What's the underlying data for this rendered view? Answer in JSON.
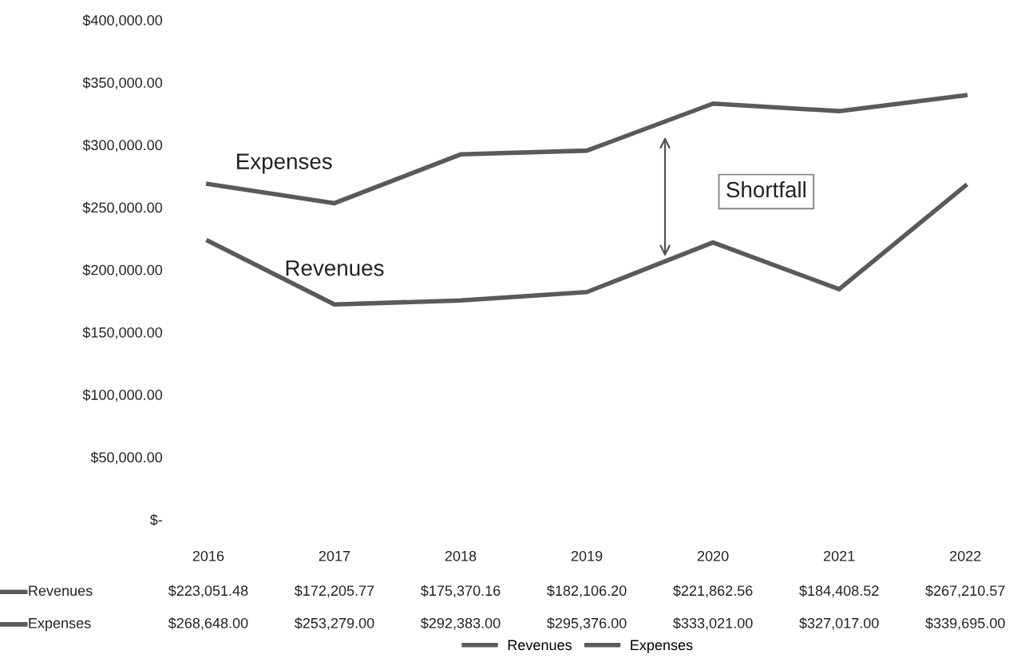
{
  "chart_data": {
    "type": "line",
    "categories": [
      "2016",
      "2017",
      "2018",
      "2019",
      "2020",
      "2021",
      "2022"
    ],
    "series": [
      {
        "name": "Revenues",
        "color": "#5a5a5a",
        "values": [
          223051.48,
          172205.77,
          175370.16,
          182106.2,
          221862.56,
          184408.52,
          267210.57
        ],
        "value_labels": [
          "$223,051.48",
          "$172,205.77",
          "$175,370.16",
          "$182,106.20",
          "$221,862.56",
          "$184,408.52",
          "$267,210.57"
        ]
      },
      {
        "name": "Expenses",
        "color": "#5a5a5a",
        "values": [
          268648.0,
          253279.0,
          292383.0,
          295376.0,
          333021.0,
          327017.0,
          339695.0
        ],
        "value_labels": [
          "$268,648.00",
          "$253,279.00",
          "$292,383.00",
          "$295,376.00",
          "$333,021.00",
          "$327,017.00",
          "$339,695.00"
        ]
      }
    ],
    "ylim": [
      0,
      400000
    ],
    "yticks": [
      {
        "value": 0,
        "label": "$-"
      },
      {
        "value": 50000,
        "label": "$50,000.00"
      },
      {
        "value": 100000,
        "label": "$100,000.00"
      },
      {
        "value": 150000,
        "label": "$150,000.00"
      },
      {
        "value": 200000,
        "label": "$200,000.00"
      },
      {
        "value": 250000,
        "label": "$250,000.00"
      },
      {
        "value": 300000,
        "label": "$300,000.00"
      },
      {
        "value": 350000,
        "label": "$350,000.00"
      },
      {
        "value": 400000,
        "label": "$400,000.00"
      }
    ],
    "annotations": [
      "Shortfall"
    ],
    "grid": false,
    "legend": "bottom",
    "marker": "none",
    "line_style": "solid"
  }
}
